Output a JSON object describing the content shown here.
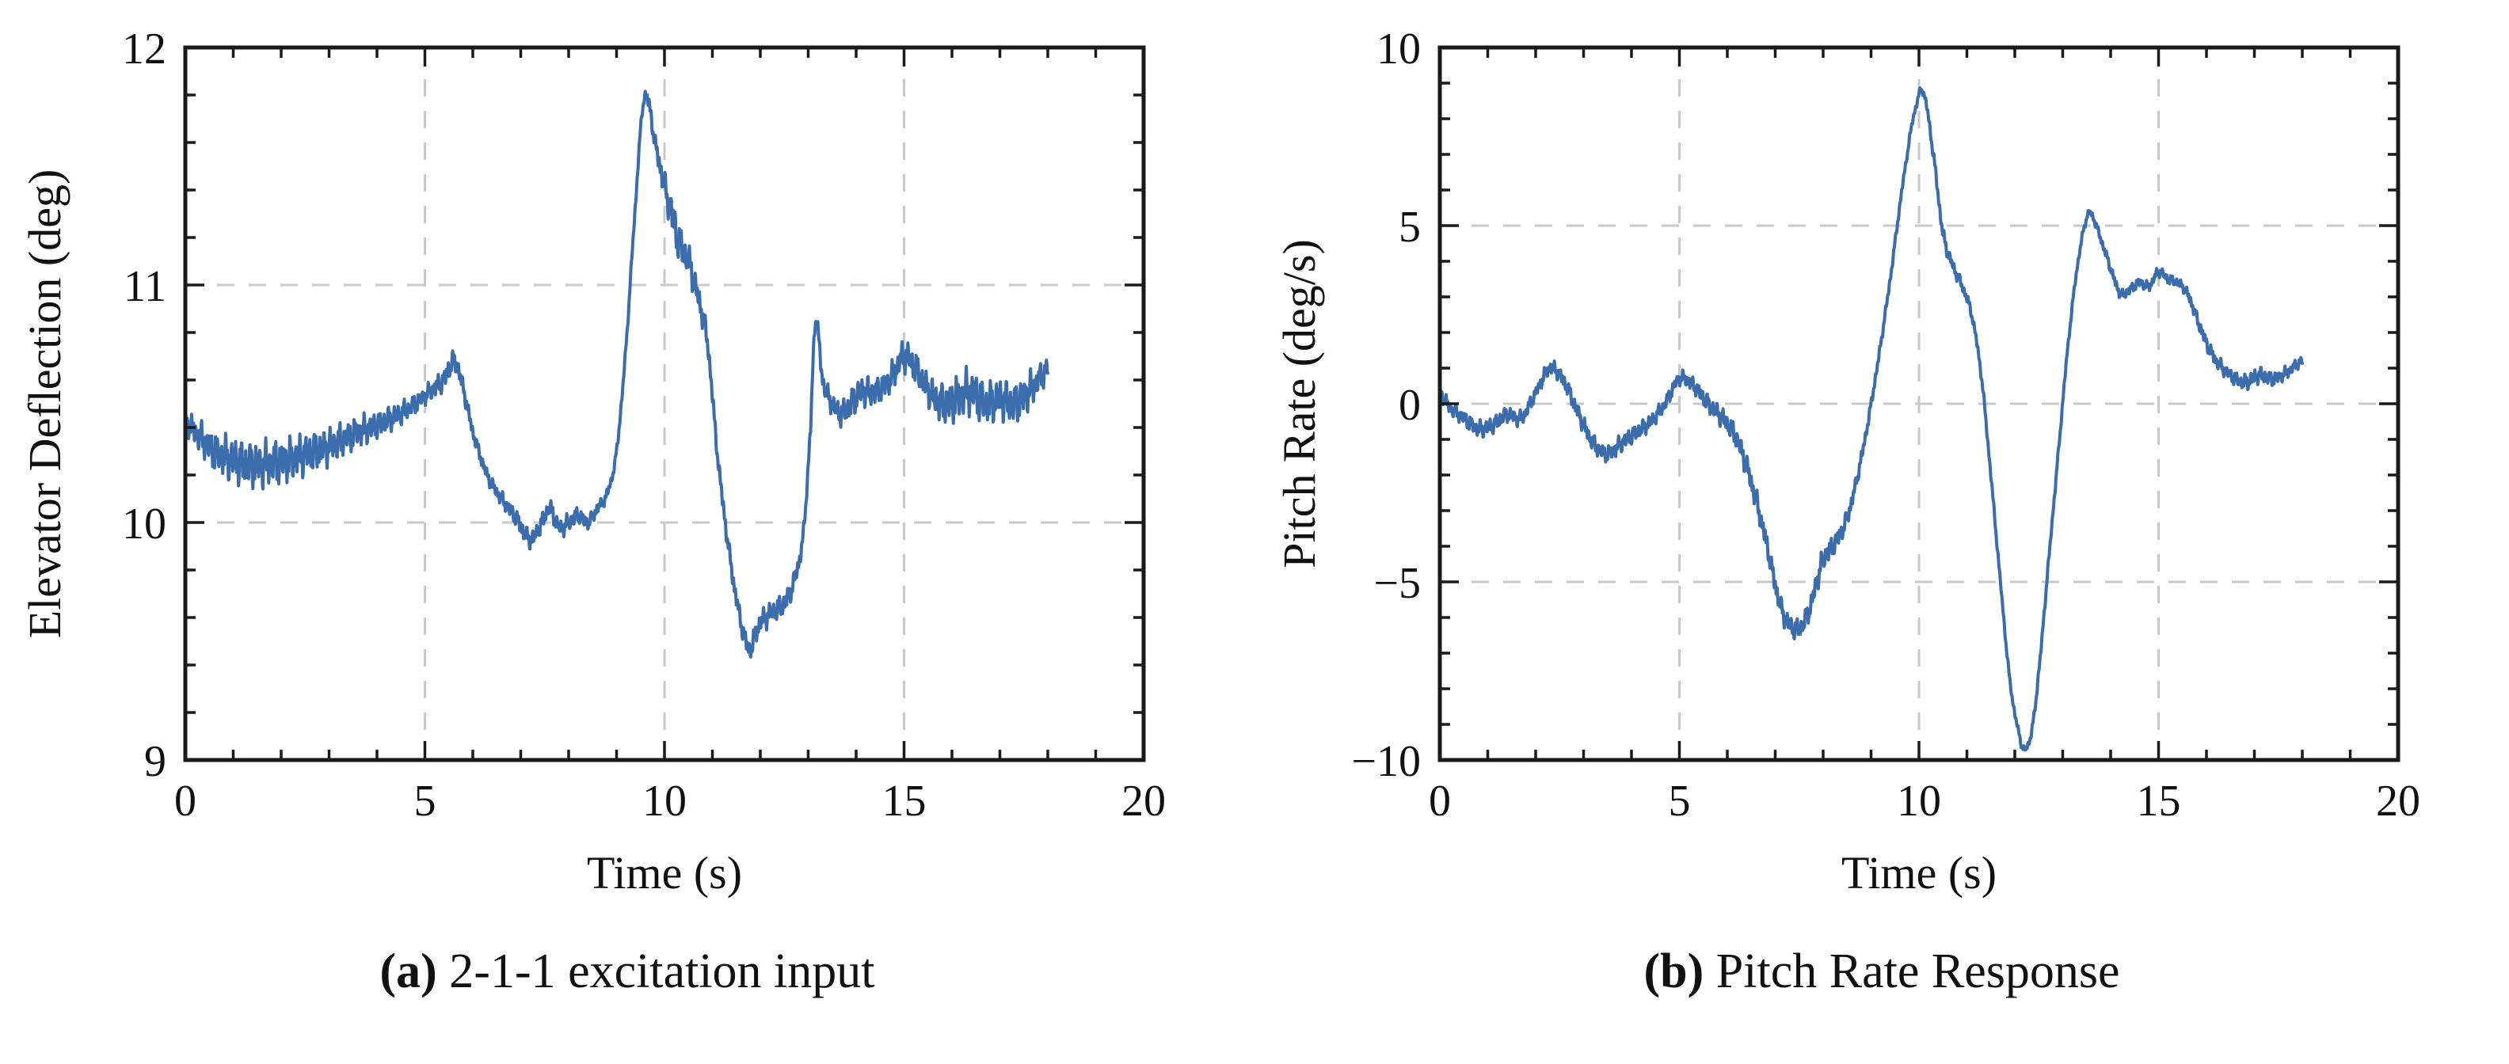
{
  "chart_data": [
    {
      "id": "a",
      "type": "line",
      "xlabel": "Time (s)",
      "ylabel": "Elevator Deflection (deg)",
      "xlim": [
        0,
        20
      ],
      "ylim": [
        9,
        12
      ],
      "xticks": [
        0,
        5,
        10,
        15,
        20
      ],
      "yticks": [
        9,
        10,
        11,
        12
      ],
      "xtick_labels": [
        "0",
        "5",
        "10",
        "15",
        "20"
      ],
      "ytick_labels": [
        "9",
        "10",
        "11",
        "12"
      ],
      "x_minor_step": 1,
      "y_minor_step": 0.2,
      "grid": true,
      "legend": "none",
      "line_color": "#3b6cab",
      "caption_label": "(a)",
      "caption_text": " 2-1-1 excitation input",
      "keypoints": [
        [
          0,
          10.42
        ],
        [
          0.3,
          10.36
        ],
        [
          0.6,
          10.3
        ],
        [
          0.9,
          10.27
        ],
        [
          1.2,
          10.25
        ],
        [
          1.5,
          10.24
        ],
        [
          1.8,
          10.25
        ],
        [
          2.1,
          10.26
        ],
        [
          2.4,
          10.28
        ],
        [
          2.7,
          10.3
        ],
        [
          3.0,
          10.32
        ],
        [
          3.3,
          10.35
        ],
        [
          3.6,
          10.38
        ],
        [
          3.9,
          10.4
        ],
        [
          4.2,
          10.43
        ],
        [
          4.5,
          10.46
        ],
        [
          4.8,
          10.5
        ],
        [
          5.1,
          10.55
        ],
        [
          5.4,
          10.6
        ],
        [
          5.6,
          10.68
        ],
        [
          5.75,
          10.6
        ],
        [
          6.0,
          10.38
        ],
        [
          6.3,
          10.2
        ],
        [
          6.6,
          10.1
        ],
        [
          6.9,
          10.02
        ],
        [
          7.2,
          9.93
        ],
        [
          7.45,
          10.0
        ],
        [
          7.6,
          10.06
        ],
        [
          7.8,
          9.98
        ],
        [
          8.0,
          10.0
        ],
        [
          8.2,
          10.03
        ],
        [
          8.4,
          10.0
        ],
        [
          8.6,
          10.06
        ],
        [
          8.8,
          10.12
        ],
        [
          9.0,
          10.3
        ],
        [
          9.2,
          10.75
        ],
        [
          9.4,
          11.35
        ],
        [
          9.55,
          11.75
        ],
        [
          9.65,
          11.78
        ],
        [
          9.8,
          11.6
        ],
        [
          10.0,
          11.42
        ],
        [
          10.15,
          11.3
        ],
        [
          10.3,
          11.18
        ],
        [
          10.5,
          11.1
        ],
        [
          10.7,
          10.95
        ],
        [
          10.9,
          10.75
        ],
        [
          11.1,
          10.3
        ],
        [
          11.3,
          9.95
        ],
        [
          11.5,
          9.68
        ],
        [
          11.7,
          9.5
        ],
        [
          11.8,
          9.47
        ],
        [
          11.95,
          9.56
        ],
        [
          12.1,
          9.6
        ],
        [
          12.3,
          9.63
        ],
        [
          12.5,
          9.66
        ],
        [
          12.7,
          9.75
        ],
        [
          12.9,
          9.95
        ],
        [
          13.05,
          10.4
        ],
        [
          13.15,
          10.85
        ],
        [
          13.3,
          10.6
        ],
        [
          13.5,
          10.5
        ],
        [
          13.7,
          10.46
        ],
        [
          13.9,
          10.5
        ],
        [
          14.1,
          10.55
        ],
        [
          14.4,
          10.55
        ],
        [
          14.7,
          10.6
        ],
        [
          15.0,
          10.7
        ],
        [
          15.2,
          10.66
        ],
        [
          15.5,
          10.56
        ],
        [
          15.8,
          10.5
        ],
        [
          16.1,
          10.52
        ],
        [
          16.4,
          10.55
        ],
        [
          16.7,
          10.5
        ],
        [
          17.0,
          10.52
        ],
        [
          17.3,
          10.5
        ],
        [
          17.6,
          10.55
        ],
        [
          17.9,
          10.62
        ],
        [
          18.0,
          10.65
        ]
      ],
      "noise_envelope": [
        [
          0,
          0.05
        ],
        [
          0.5,
          0.08
        ],
        [
          1,
          0.1
        ],
        [
          1.5,
          0.1
        ],
        [
          2,
          0.1
        ],
        [
          2.5,
          0.09
        ],
        [
          3,
          0.08
        ],
        [
          3.5,
          0.07
        ],
        [
          4,
          0.06
        ],
        [
          4.5,
          0.05
        ],
        [
          5,
          0.04
        ],
        [
          5.5,
          0.05
        ],
        [
          6,
          0.03
        ],
        [
          6.5,
          0.03
        ],
        [
          7,
          0.04
        ],
        [
          7.5,
          0.04
        ],
        [
          8,
          0.04
        ],
        [
          8.5,
          0.03
        ],
        [
          9,
          0.02
        ],
        [
          9.5,
          0.02
        ],
        [
          9.9,
          0.05
        ],
        [
          10.2,
          0.09
        ],
        [
          10.6,
          0.07
        ],
        [
          11,
          0.04
        ],
        [
          11.5,
          0.04
        ],
        [
          12,
          0.05
        ],
        [
          12.5,
          0.05
        ],
        [
          13,
          0.03
        ],
        [
          13.5,
          0.05
        ],
        [
          14,
          0.07
        ],
        [
          14.5,
          0.06
        ],
        [
          15,
          0.07
        ],
        [
          15.5,
          0.07
        ],
        [
          16,
          0.1
        ],
        [
          16.5,
          0.1
        ],
        [
          17,
          0.09
        ],
        [
          17.5,
          0.09
        ],
        [
          18,
          0.05
        ]
      ]
    },
    {
      "id": "b",
      "type": "line",
      "xlabel": "Time (s)",
      "ylabel": "Pitch Rate (deg/s)",
      "xlim": [
        0,
        20
      ],
      "ylim": [
        -10,
        10
      ],
      "xticks": [
        0,
        5,
        10,
        15,
        20
      ],
      "yticks": [
        -10,
        -5,
        0,
        5,
        10
      ],
      "xtick_labels": [
        "0",
        "5",
        "10",
        "15",
        "20"
      ],
      "ytick_labels": [
        "−10",
        "−5",
        "0",
        "5",
        "10"
      ],
      "x_minor_step": 1,
      "y_minor_step": 1,
      "grid": true,
      "legend": "none",
      "line_color": "#3b6cab",
      "caption_label": "(b)",
      "caption_text": " Pitch Rate Response",
      "keypoints": [
        [
          0,
          0.3
        ],
        [
          0.2,
          -0.1
        ],
        [
          0.5,
          -0.4
        ],
        [
          0.8,
          -0.7
        ],
        [
          1.1,
          -0.6
        ],
        [
          1.4,
          -0.3
        ],
        [
          1.7,
          -0.4
        ],
        [
          2.0,
          0.3
        ],
        [
          2.3,
          1.0
        ],
        [
          2.6,
          0.6
        ],
        [
          2.9,
          -0.3
        ],
        [
          3.2,
          -1.1
        ],
        [
          3.5,
          -1.4
        ],
        [
          3.8,
          -1.1
        ],
        [
          4.1,
          -0.8
        ],
        [
          4.4,
          -0.5
        ],
        [
          4.7,
          0.0
        ],
        [
          5.0,
          0.7
        ],
        [
          5.3,
          0.5
        ],
        [
          5.6,
          0.0
        ],
        [
          5.9,
          -0.4
        ],
        [
          6.2,
          -1.0
        ],
        [
          6.5,
          -2.2
        ],
        [
          6.8,
          -3.8
        ],
        [
          7.1,
          -5.6
        ],
        [
          7.3,
          -6.2
        ],
        [
          7.5,
          -6.3
        ],
        [
          7.7,
          -5.8
        ],
        [
          8.0,
          -4.4
        ],
        [
          8.2,
          -4.0
        ],
        [
          8.5,
          -3.2
        ],
        [
          8.8,
          -1.5
        ],
        [
          9.1,
          0.8
        ],
        [
          9.4,
          3.5
        ],
        [
          9.7,
          6.5
        ],
        [
          9.95,
          8.4
        ],
        [
          10.1,
          8.7
        ],
        [
          10.3,
          7.0
        ],
        [
          10.5,
          4.8
        ],
        [
          10.7,
          3.9
        ],
        [
          10.9,
          3.3
        ],
        [
          11.1,
          2.5
        ],
        [
          11.3,
          0.8
        ],
        [
          11.5,
          -2.0
        ],
        [
          11.7,
          -5.0
        ],
        [
          11.9,
          -7.8
        ],
        [
          12.1,
          -9.3
        ],
        [
          12.2,
          -9.7
        ],
        [
          12.35,
          -9.2
        ],
        [
          12.5,
          -7.5
        ],
        [
          12.7,
          -4.5
        ],
        [
          12.9,
          -1.5
        ],
        [
          13.1,
          1.5
        ],
        [
          13.3,
          3.8
        ],
        [
          13.5,
          5.2
        ],
        [
          13.6,
          5.3
        ],
        [
          13.8,
          4.6
        ],
        [
          14.0,
          3.8
        ],
        [
          14.2,
          3.1
        ],
        [
          14.4,
          3.2
        ],
        [
          14.6,
          3.4
        ],
        [
          14.8,
          3.3
        ],
        [
          15.0,
          3.7
        ],
        [
          15.2,
          3.5
        ],
        [
          15.4,
          3.4
        ],
        [
          15.6,
          3.1
        ],
        [
          15.8,
          2.4
        ],
        [
          16.0,
          1.7
        ],
        [
          16.2,
          1.2
        ],
        [
          16.5,
          0.8
        ],
        [
          16.8,
          0.6
        ],
        [
          17.1,
          0.8
        ],
        [
          17.4,
          0.7
        ],
        [
          17.7,
          0.9
        ],
        [
          18.0,
          1.2
        ]
      ],
      "noise_envelope": [
        [
          0,
          0.2
        ],
        [
          1,
          0.25
        ],
        [
          2,
          0.2
        ],
        [
          3,
          0.25
        ],
        [
          4,
          0.25
        ],
        [
          5,
          0.2
        ],
        [
          5.5,
          0.25
        ],
        [
          6,
          0.3
        ],
        [
          6.5,
          0.35
        ],
        [
          7,
          0.3
        ],
        [
          7.5,
          0.3
        ],
        [
          8,
          0.35
        ],
        [
          8.5,
          0.25
        ],
        [
          9,
          0.15
        ],
        [
          9.5,
          0.12
        ],
        [
          10,
          0.1
        ],
        [
          10.5,
          0.2
        ],
        [
          11,
          0.15
        ],
        [
          11.5,
          0.12
        ],
        [
          12,
          0.1
        ],
        [
          12.5,
          0.12
        ],
        [
          13,
          0.12
        ],
        [
          13.5,
          0.1
        ],
        [
          14,
          0.15
        ],
        [
          14.5,
          0.15
        ],
        [
          15,
          0.15
        ],
        [
          15.5,
          0.15
        ],
        [
          16,
          0.2
        ],
        [
          16.5,
          0.2
        ],
        [
          17,
          0.25
        ],
        [
          17.5,
          0.2
        ],
        [
          18,
          0.15
        ]
      ]
    }
  ]
}
